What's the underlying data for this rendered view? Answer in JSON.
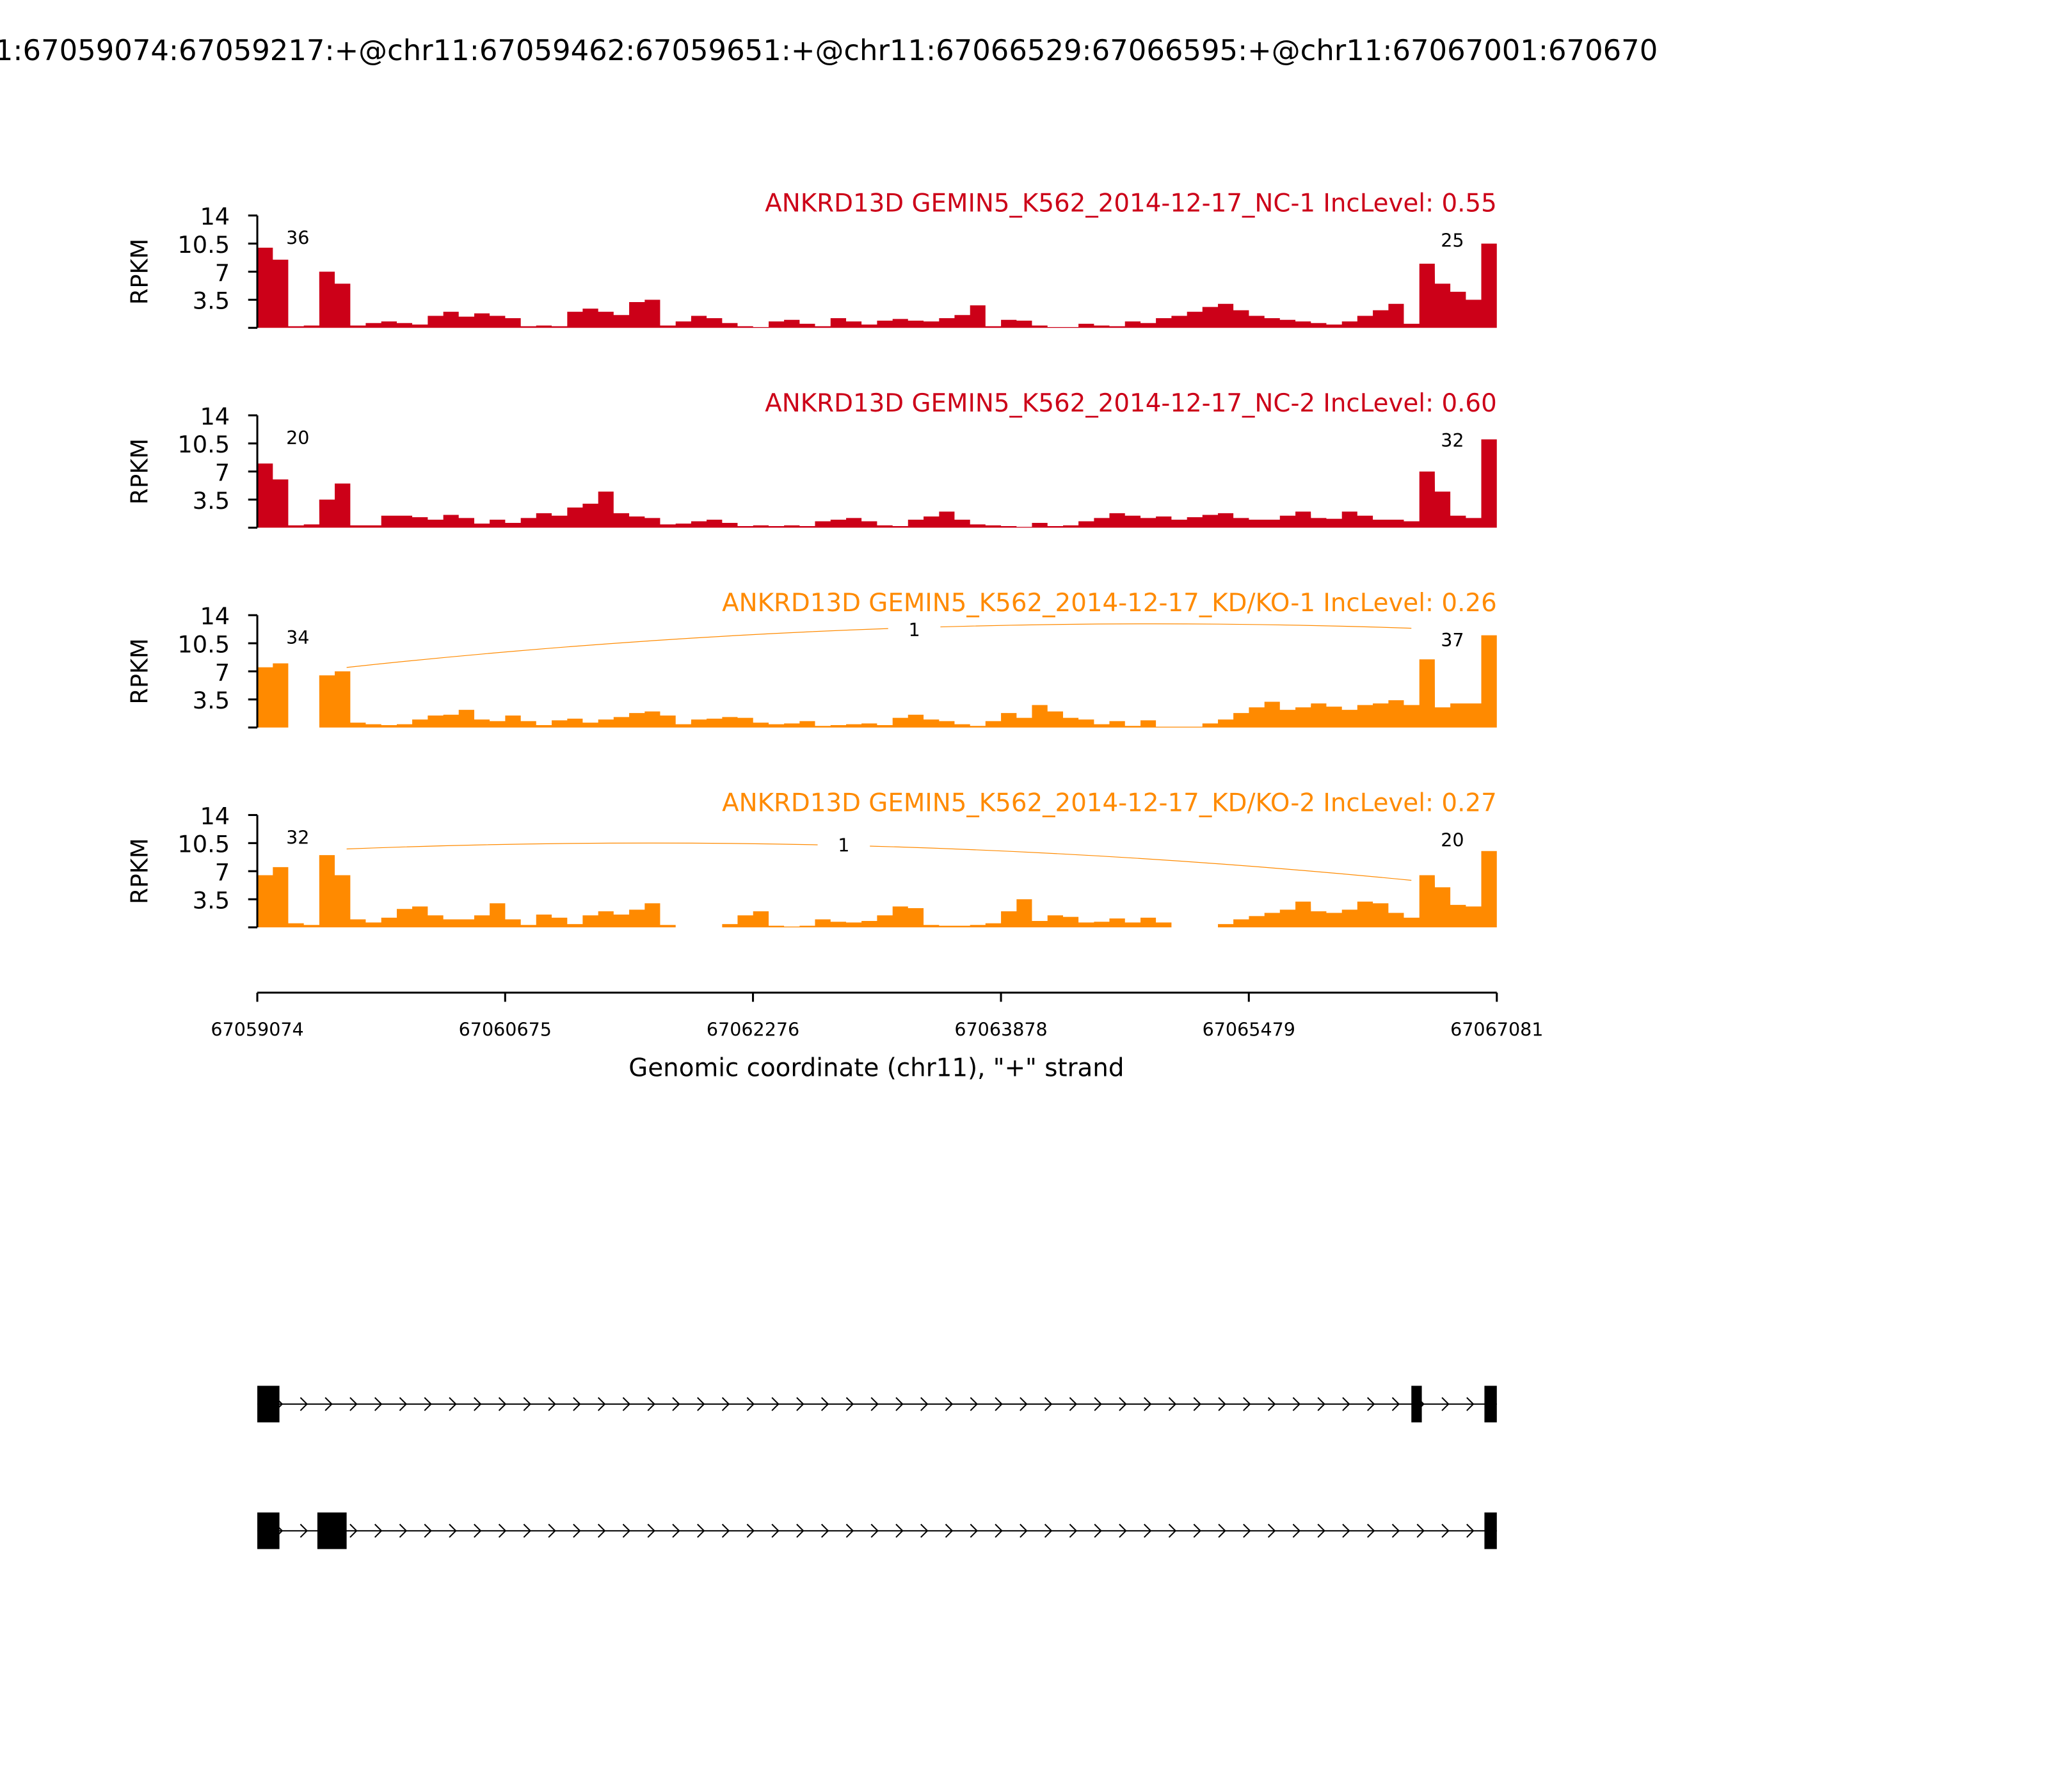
{
  "chart_data": {
    "type": "area",
    "title": "1:67059074:67059217:+@chr11:67059462:67059651:+@chr11:67066529:67066595:+@chr11:67067001:670670",
    "xlabel": "Genomic coordinate (chr11), \"+\" strand",
    "ylabel": "RPKM",
    "xlim": [
      67059074,
      67067081
    ],
    "ylim": [
      0,
      14
    ],
    "yticks": [
      "14",
      "10.5",
      "7",
      "3.5"
    ],
    "xticks": [
      "67059074",
      "67060675",
      "67062276",
      "67063878",
      "67065479",
      "67067081"
    ],
    "colors": {
      "nc": "#cc0018",
      "kd": "#ff8a00"
    },
    "tracks": [
      {
        "title": "ANKRD13D GEMIN5_K562_2014-12-17_NC-1 IncLevel: 0.55",
        "group": "nc",
        "junctions": {
          "left": "36",
          "right": "25"
        },
        "coverage": [
          10,
          8.5,
          0.2,
          0.3,
          7,
          5.5,
          0.3,
          0.6,
          0.8,
          0.6,
          0.4,
          1.5,
          2,
          1.4,
          1.8,
          1.5,
          1.2,
          0.2,
          0.3,
          0.2,
          2,
          2.4,
          2,
          1.6,
          3.2,
          3.5,
          0.3,
          0.8,
          1.5,
          1.2,
          0.6,
          0.2,
          0.1,
          0.8,
          1.0,
          0.5,
          0.2,
          1.2,
          0.8,
          0.4,
          0.9,
          1.1,
          0.9,
          0.8,
          1.2,
          1.6,
          2.8,
          0.2,
          1.0,
          0.9,
          0.3,
          0.1,
          0.1,
          0.5,
          0.3,
          0.2,
          0.8,
          0.6,
          1.2,
          1.5,
          2,
          2.6,
          3.0,
          2.2,
          1.5,
          1.2,
          1.0,
          0.8,
          0.6,
          0.4,
          0.8,
          1.5,
          2.2,
          3.0,
          0.5,
          8,
          5.5,
          4.5,
          3.5,
          10.5
        ]
      },
      {
        "title": "ANKRD13D GEMIN5_K562_2014-12-17_NC-2 IncLevel: 0.60",
        "group": "nc",
        "junctions": {
          "left": "20",
          "right": "32"
        },
        "coverage": [
          8,
          6,
          0.3,
          0.4,
          3.5,
          5.5,
          0.3,
          0.3,
          1.5,
          1.5,
          1.3,
          1.0,
          1.6,
          1.2,
          0.5,
          1.0,
          0.6,
          1.2,
          1.8,
          1.5,
          2.5,
          3,
          4.5,
          1.8,
          1.4,
          1.2,
          0.4,
          0.5,
          0.8,
          1.0,
          0.6,
          0.2,
          0.3,
          0.2,
          0.3,
          0.2,
          0.8,
          1.0,
          1.2,
          0.8,
          0.3,
          0.2,
          1.0,
          1.4,
          2,
          1.0,
          0.4,
          0.3,
          0.2,
          0.1,
          0.6,
          0.2,
          0.3,
          0.8,
          1.2,
          1.8,
          1.5,
          1.2,
          1.4,
          1.0,
          1.3,
          1.6,
          1.8,
          1.2,
          1.0,
          1.0,
          1.5,
          2,
          1.2,
          1.1,
          2,
          1.5,
          1.0,
          1.0,
          0.8,
          7,
          4.5,
          1.5,
          1.2,
          11
        ]
      },
      {
        "title": "ANKRD13D GEMIN5_K562_2014-12-17_KD/KO-1 IncLevel: 0.26",
        "group": "kd",
        "junctions": {
          "left": "34",
          "skip": "1",
          "right": "37"
        },
        "coverage": [
          7.5,
          8,
          0,
          0,
          6.5,
          7,
          0.6,
          0.4,
          0.3,
          0.4,
          1.0,
          1.5,
          1.6,
          2.2,
          1.0,
          0.8,
          1.5,
          0.8,
          0.3,
          0.9,
          1.1,
          0.6,
          1.0,
          1.3,
          1.8,
          2,
          1.5,
          0.4,
          1.0,
          1.1,
          1.3,
          1.2,
          0.6,
          0.4,
          0.5,
          0.8,
          0.2,
          0.3,
          0.4,
          0.5,
          0.3,
          1.2,
          1.6,
          1.0,
          0.8,
          0.4,
          0.2,
          0.8,
          1.8,
          1.2,
          2.8,
          2,
          1.2,
          1.0,
          0.4,
          0.8,
          0.2,
          0.9,
          0.1,
          0.1,
          0.1,
          0.5,
          1.0,
          1.8,
          2.5,
          3.2,
          2.2,
          2.5,
          3.0,
          2.6,
          2.2,
          2.8,
          3.0,
          3.4,
          2.8,
          8.5,
          2.5,
          3.0,
          3.0,
          11.5
        ]
      },
      {
        "title": "ANKRD13D GEMIN5_K562_2014-12-17_KD/KO-2 IncLevel: 0.27",
        "group": "kd",
        "junctions": {
          "left": "32",
          "skip": "1",
          "right": "20"
        },
        "coverage": [
          6.5,
          7.5,
          0.5,
          0.3,
          9,
          6.5,
          1.0,
          0.6,
          1.2,
          2.3,
          2.6,
          1.5,
          1.0,
          1.0,
          1.5,
          3,
          1.0,
          0.3,
          1.6,
          1.2,
          0.4,
          1.5,
          2,
          1.6,
          2.2,
          3,
          0.3,
          0,
          0,
          0,
          0.4,
          1.5,
          2.0,
          0.2,
          0.1,
          0.2,
          1.0,
          0.7,
          0.6,
          0.8,
          1.5,
          2.6,
          2.4,
          0.3,
          0.2,
          0.2,
          0.3,
          0.5,
          2,
          3.5,
          0.8,
          1.5,
          1.3,
          0.6,
          0.7,
          1.1,
          0.6,
          1.2,
          0.6,
          0,
          0,
          0,
          0.4,
          1.0,
          1.4,
          1.8,
          2.2,
          3.2,
          2.0,
          1.8,
          2.2,
          3.2,
          3.0,
          1.8,
          1.2,
          6.5,
          5,
          2.8,
          2.6,
          9.5
        ]
      }
    ],
    "exons": [
      [
        67059074,
        67059217
      ],
      [
        67059462,
        67059651
      ],
      [
        67066529,
        67066595
      ],
      [
        67067001,
        67067081
      ]
    ],
    "transcripts": [
      [
        0,
        2,
        3
      ],
      [
        0,
        1,
        3
      ]
    ]
  }
}
